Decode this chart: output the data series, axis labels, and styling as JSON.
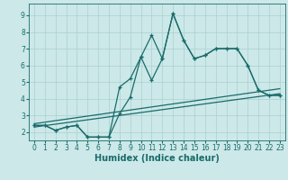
{
  "xlabel": "Humidex (Indice chaleur)",
  "background_color": "#cce8e8",
  "line_color": "#1a6b6b",
  "xlim": [
    -0.5,
    23.5
  ],
  "ylim": [
    1.5,
    9.7
  ],
  "xticks": [
    0,
    1,
    2,
    3,
    4,
    5,
    6,
    7,
    8,
    9,
    10,
    11,
    12,
    13,
    14,
    15,
    16,
    17,
    18,
    19,
    20,
    21,
    22,
    23
  ],
  "yticks": [
    2,
    3,
    4,
    5,
    6,
    7,
    8,
    9
  ],
  "series1_x": [
    0,
    1,
    2,
    3,
    4,
    5,
    6,
    7,
    8,
    9,
    10,
    11,
    12,
    13,
    14,
    15,
    16,
    17,
    18,
    19,
    20,
    21,
    22,
    23
  ],
  "series1_y": [
    2.4,
    2.4,
    2.1,
    2.3,
    2.4,
    1.7,
    1.7,
    1.7,
    3.1,
    4.1,
    6.5,
    7.8,
    6.4,
    9.1,
    7.5,
    6.4,
    6.6,
    7.0,
    7.0,
    7.0,
    6.0,
    4.5,
    4.2,
    4.2
  ],
  "series2_x": [
    0,
    1,
    2,
    3,
    4,
    5,
    6,
    7,
    8,
    9,
    10,
    11,
    12,
    13,
    14,
    15,
    16,
    17,
    18,
    19,
    20,
    21,
    22,
    23
  ],
  "series2_y": [
    2.4,
    2.4,
    2.1,
    2.3,
    2.4,
    1.7,
    1.7,
    1.7,
    4.7,
    5.2,
    6.5,
    5.1,
    6.4,
    9.1,
    7.5,
    6.4,
    6.6,
    7.0,
    7.0,
    7.0,
    6.0,
    4.5,
    4.2,
    4.2
  ],
  "trend1_x": [
    0,
    23
  ],
  "trend1_y": [
    2.3,
    4.3
  ],
  "trend2_x": [
    0,
    23
  ],
  "trend2_y": [
    2.5,
    4.6
  ],
  "grid_color": "#aad0d0",
  "font_color": "#1a6b6b",
  "lw": 0.9,
  "ms": 3.5,
  "xlabel_fontsize": 7,
  "tick_fontsize": 5.5
}
